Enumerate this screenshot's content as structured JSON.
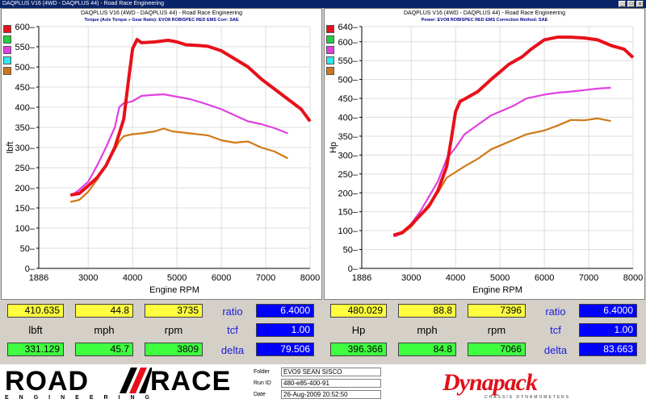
{
  "window": {
    "title": "DAQPLUS V16 (4WD - DAQPLUS 44) - Road Race Engineering",
    "buttons": [
      "_",
      "□",
      "x"
    ]
  },
  "legend_colors": [
    "#e8101a",
    "#20d040",
    "#e040e0",
    "#30e8f0",
    "#d07818"
  ],
  "torque_panel": {
    "header": "DAQPLUS V16 (4WD - DAQPLUS 44) - Road Race Engineering",
    "subheader": "Torque (Axle Torque ÷ Gear Ratio): EVO8 ROBISPEC RED EMS     Corr: SAE"
  },
  "power_panel": {
    "header": "DAQPLUS V16 (4WD - DAQPLUS 44) - Road Race Engineering",
    "subheader": "Power: EVO8 ROBISPEC RED EMS     Correction Method: SAE"
  },
  "chart_data": [
    {
      "type": "line",
      "xlabel": "Engine RPM",
      "ylabel": "lbft",
      "xlim": [
        1886,
        8000
      ],
      "ylim": [
        0,
        600
      ],
      "x_ticks": [
        "1886",
        "3000",
        "4000",
        "5000",
        "6000",
        "7000",
        "8000"
      ],
      "y_ticks": [
        "0",
        "50",
        "100",
        "150",
        "200",
        "250",
        "300",
        "350",
        "400",
        "450",
        "500",
        "550",
        "600"
      ],
      "grid": true,
      "series": [
        {
          "color": "#e8101a",
          "x": [
            2600,
            2800,
            3000,
            3200,
            3400,
            3600,
            3800,
            3900,
            4000,
            4100,
            4200,
            4500,
            4800,
            5000,
            5200,
            5500,
            5700,
            6000,
            6300,
            6600,
            6900,
            7200,
            7500,
            7800,
            8000
          ],
          "y": [
            182,
            186,
            205,
            225,
            255,
            300,
            370,
            460,
            545,
            568,
            560,
            562,
            566,
            562,
            555,
            553,
            551,
            540,
            520,
            500,
            470,
            445,
            420,
            395,
            365
          ]
        },
        {
          "color": "#e040e0",
          "x": [
            2650,
            2800,
            3000,
            3200,
            3400,
            3600,
            3700,
            3800,
            3900,
            4000,
            4200,
            4400,
            4700,
            5000,
            5300,
            5600,
            6000,
            6300,
            6600,
            6900,
            7200,
            7500
          ],
          "y": [
            183,
            195,
            215,
            255,
            300,
            350,
            400,
            410,
            412,
            415,
            428,
            430,
            432,
            426,
            420,
            410,
            395,
            380,
            365,
            358,
            348,
            335
          ]
        },
        {
          "color": "#d07818",
          "x": [
            2600,
            2800,
            3000,
            3200,
            3400,
            3600,
            3700,
            3800,
            4000,
            4200,
            4500,
            4700,
            4900,
            5300,
            5700,
            6000,
            6300,
            6600,
            6900,
            7200,
            7500
          ],
          "y": [
            165,
            170,
            190,
            220,
            255,
            295,
            315,
            328,
            333,
            335,
            340,
            347,
            340,
            335,
            330,
            318,
            312,
            315,
            300,
            290,
            273
          ]
        }
      ]
    },
    {
      "type": "line",
      "xlabel": "Engine RPM",
      "ylabel": "Hp",
      "xlim": [
        1886,
        8000
      ],
      "ylim": [
        0,
        640
      ],
      "x_ticks": [
        "1886",
        "3000",
        "4000",
        "5000",
        "6000",
        "7000",
        "8000"
      ],
      "y_ticks": [
        "0",
        "50",
        "100",
        "150",
        "200",
        "250",
        "300",
        "350",
        "400",
        "450",
        "500",
        "550",
        "600",
        "640"
      ],
      "grid": true,
      "series": [
        {
          "color": "#e8101a",
          "x": [
            2600,
            2800,
            3000,
            3200,
            3400,
            3600,
            3800,
            3900,
            4000,
            4100,
            4200,
            4500,
            4800,
            5000,
            5200,
            5500,
            5700,
            6000,
            6300,
            6600,
            6900,
            7200,
            7500,
            7800,
            8000
          ],
          "y": [
            88,
            95,
            115,
            140,
            165,
            205,
            270,
            340,
            415,
            442,
            448,
            468,
            500,
            520,
            540,
            560,
            580,
            605,
            612,
            612,
            610,
            605,
            590,
            580,
            558
          ]
        },
        {
          "color": "#e040e0",
          "x": [
            2650,
            2800,
            3000,
            3200,
            3400,
            3600,
            3800,
            4000,
            4200,
            4500,
            4800,
            5000,
            5300,
            5600,
            6000,
            6300,
            6600,
            6900,
            7200,
            7500
          ],
          "y": [
            85,
            95,
            118,
            150,
            190,
            230,
            290,
            320,
            355,
            380,
            405,
            415,
            430,
            450,
            460,
            465,
            468,
            472,
            476,
            478
          ]
        },
        {
          "color": "#d07818",
          "x": [
            2600,
            2800,
            3000,
            3200,
            3400,
            3600,
            3800,
            4000,
            4200,
            4500,
            4800,
            5000,
            5300,
            5600,
            6000,
            6300,
            6600,
            6900,
            7200,
            7500
          ],
          "y": [
            85,
            92,
            110,
            140,
            170,
            200,
            240,
            255,
            270,
            290,
            315,
            325,
            340,
            355,
            365,
            378,
            393,
            392,
            397,
            390
          ]
        }
      ]
    }
  ],
  "readouts_left": {
    "top": [
      "410.635",
      "44.8",
      "3735"
    ],
    "units": [
      "lbft",
      "mph",
      "rpm"
    ],
    "bottom": [
      "331.129",
      "45.7",
      "3809"
    ],
    "labels": [
      "ratio",
      "tcf",
      "delta"
    ],
    "blue": [
      "6.4000",
      "1.00",
      "79.506"
    ]
  },
  "readouts_right": {
    "top": [
      "480.029",
      "88.8",
      "7396"
    ],
    "units": [
      "Hp",
      "mph",
      "rpm"
    ],
    "bottom": [
      "396.366",
      "84.8",
      "7066"
    ],
    "labels": [
      "ratio",
      "tcf",
      "delta"
    ],
    "blue": [
      "6.4000",
      "1.00",
      "83.663"
    ]
  },
  "footer": {
    "logo_left": "ROAD",
    "logo_right": "RACE",
    "logo_sub": "ENGINEERING",
    "folder_label": "Folder",
    "folder_value": "EVO9 SEAN SISCO",
    "runid_label": "Run ID",
    "runid_value": "480-e85-400-91",
    "date_label": "Date",
    "date_value": "26-Aug-2009  20:52:50",
    "brand": "Dynapack",
    "brand_sub": "CHASSIS DYNAMOMETERS"
  }
}
